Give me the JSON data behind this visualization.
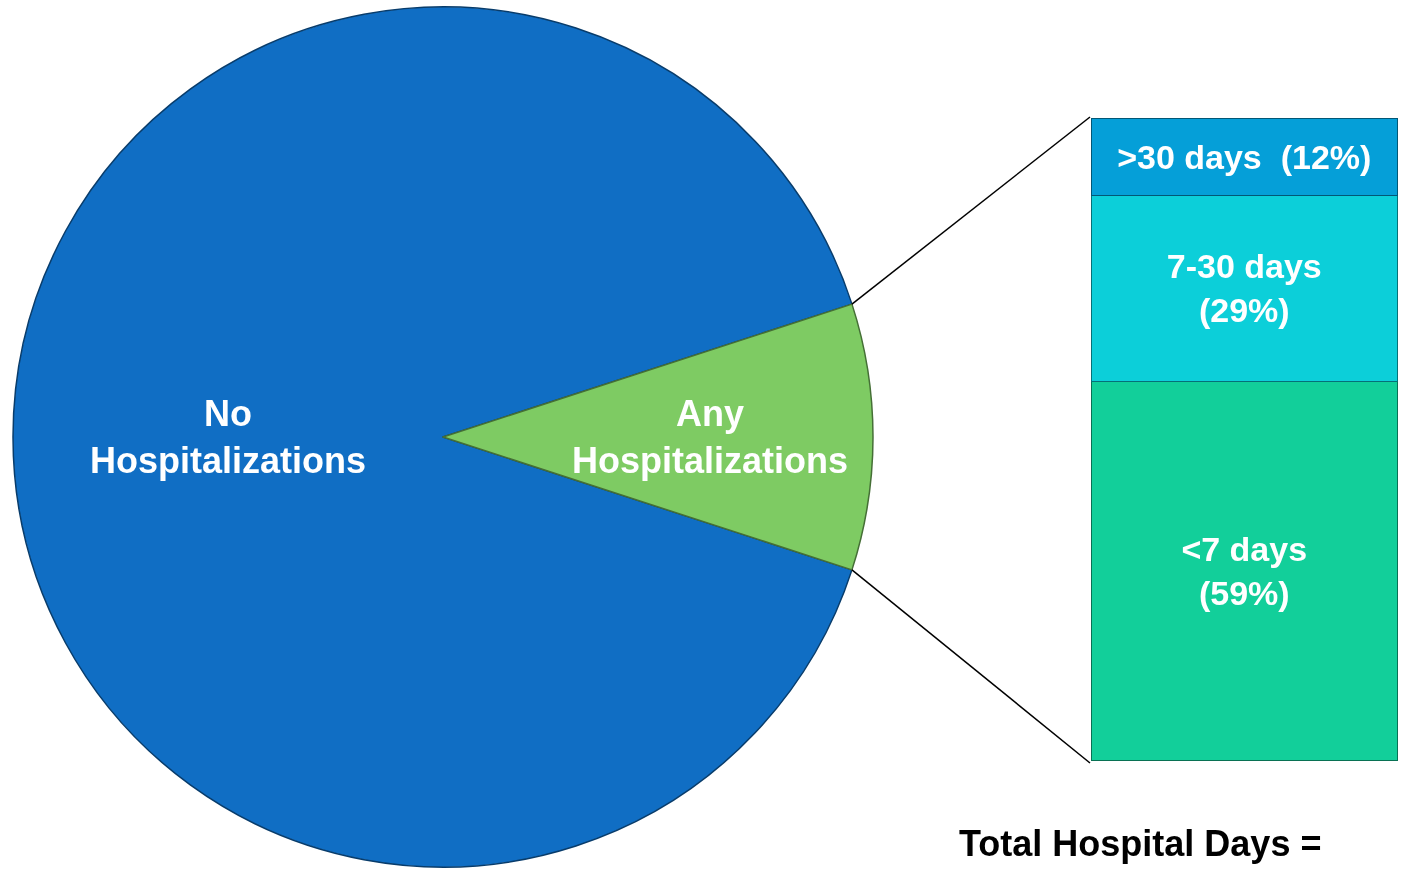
{
  "chart_data": [
    {
      "type": "pie",
      "categories": [
        "No Hospitalizations",
        "Any Hospitalizations"
      ],
      "values": [
        90,
        10
      ],
      "colors": [
        "#106ec4",
        "#7ecb63"
      ]
    },
    {
      "type": "bar",
      "stacked": true,
      "categories": [
        null
      ],
      "tick_labels": false,
      "series": [
        {
          "name": "<7 days",
          "color": "#12cf9a",
          "values": [
            59
          ],
          "value_labels": [
            "(59%)"
          ]
        },
        {
          "name": "7-30 days",
          "color": "#0ccfd9",
          "values": [
            29
          ],
          "value_labels": [
            "(29%)"
          ]
        },
        {
          "name": ">30 days",
          "color": "#059fd8",
          "values": [
            12
          ],
          "value_labels": [
            "(12%)"
          ]
        }
      ],
      "annotations": [
        "Total Hospital Days ="
      ]
    }
  ]
}
